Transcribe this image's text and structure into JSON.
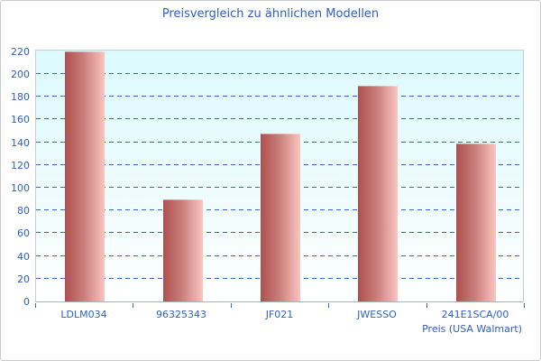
{
  "window": {
    "background": "#ffffff",
    "border_color": "#c9c9c9"
  },
  "chart_data": {
    "type": "bar",
    "title": "Preisvergleich zu ähnlichen Modellen",
    "categories": [
      "LDLM034",
      "96325343",
      "JF021",
      "JWESSO",
      "241E1SCA/00"
    ],
    "values": [
      220,
      90,
      148,
      190,
      139
    ],
    "xlabel": "Preis (USA Walmart)",
    "ylabel": "",
    "ylim": [
      0,
      220
    ],
    "ytick_step": 20,
    "grid": "horizontal-dashed",
    "legend_position": "none",
    "colors": {
      "title_text": "#2b5fce",
      "axis_text": "#2b5fce",
      "gridline": "#3366cc",
      "tick": "#3366cc",
      "bar_gradient_left": "#ae5150",
      "bar_gradient_right": "#f9c5c0",
      "plot_bg_top": "#dcfafe",
      "plot_bg_bottom": "#ffffff",
      "plot_border": "#c8cdd2"
    }
  }
}
